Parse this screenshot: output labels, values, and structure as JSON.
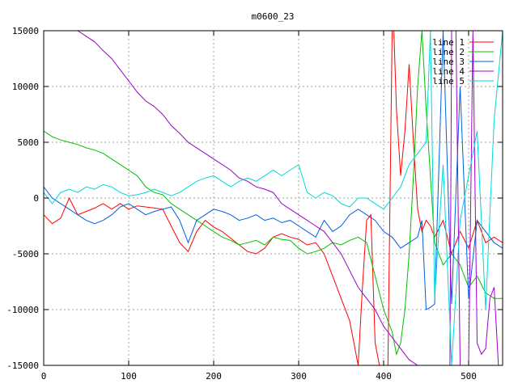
{
  "chart_data": {
    "type": "line",
    "title": "m0600_23",
    "xlabel": "",
    "ylabel": "",
    "xlim": [
      0,
      540
    ],
    "ylim": [
      -15000,
      15000
    ],
    "x_ticks": [
      0,
      100,
      200,
      300,
      400,
      500
    ],
    "y_ticks": [
      -15000,
      -10000,
      -5000,
      0,
      5000,
      10000,
      15000
    ],
    "grid": true,
    "legend_position": "top-right",
    "series": [
      {
        "name": "line 1",
        "color": "#ff0000",
        "x": [
          0,
          10,
          20,
          30,
          40,
          50,
          60,
          70,
          80,
          90,
          100,
          110,
          120,
          130,
          140,
          150,
          160,
          170,
          180,
          190,
          200,
          210,
          220,
          230,
          240,
          250,
          260,
          270,
          280,
          290,
          300,
          310,
          320,
          330,
          340,
          350,
          360,
          365,
          370,
          375,
          380,
          385,
          390,
          395,
          400,
          405,
          410,
          412,
          415,
          420,
          425,
          430,
          435,
          440,
          445,
          450,
          455,
          460,
          470,
          480,
          490,
          500,
          510,
          520,
          530,
          540
        ],
        "values": [
          -1500,
          -2300,
          -1800,
          0,
          -1500,
          -1200,
          -900,
          -500,
          -1000,
          -500,
          -1000,
          -700,
          -800,
          -900,
          -1000,
          -2500,
          -4000,
          -4800,
          -3000,
          -2000,
          -2600,
          -3000,
          -3600,
          -4200,
          -4800,
          -5000,
          -4500,
          -3500,
          -3200,
          -3500,
          -3700,
          -4200,
          -4000,
          -5000,
          -7000,
          -9000,
          -11000,
          -13000,
          -15000,
          -8000,
          -2000,
          -1500,
          -13000,
          -15000,
          -15000,
          -15000,
          15000,
          15000,
          8000,
          2000,
          6000,
          12000,
          5000,
          -1000,
          -3000,
          -2000,
          -2500,
          -3500,
          -2000,
          -5000,
          -3000,
          -4500,
          -2000,
          -4000,
          -3500,
          -4000
        ]
      },
      {
        "name": "line 2",
        "color": "#00c000",
        "x": [
          0,
          10,
          20,
          30,
          40,
          50,
          60,
          70,
          80,
          90,
          100,
          110,
          120,
          130,
          140,
          150,
          160,
          170,
          180,
          190,
          200,
          210,
          220,
          230,
          240,
          250,
          260,
          270,
          280,
          290,
          300,
          310,
          320,
          330,
          340,
          350,
          360,
          370,
          380,
          390,
          400,
          410,
          415,
          420,
          425,
          430,
          435,
          440,
          445,
          450,
          460,
          470,
          480,
          490,
          500,
          510,
          520,
          530,
          540
        ],
        "values": [
          6000,
          5500,
          5200,
          5000,
          4800,
          4500,
          4300,
          4000,
          3500,
          3000,
          2500,
          2000,
          1000,
          500,
          300,
          -500,
          -1000,
          -1500,
          -2000,
          -2500,
          -3000,
          -3500,
          -3800,
          -4200,
          -4000,
          -3800,
          -4200,
          -3500,
          -3700,
          -3800,
          -4500,
          -5000,
          -4800,
          -4500,
          -4000,
          -4200,
          -3800,
          -3500,
          -4000,
          -7000,
          -10000,
          -12000,
          -14000,
          -13000,
          -10000,
          -5000,
          2000,
          10000,
          15000,
          8000,
          -4000,
          -6000,
          -5000,
          -6000,
          -8000,
          -7000,
          -8500,
          -9000,
          -9000
        ]
      },
      {
        "name": "line 3",
        "color": "#0060e0",
        "x": [
          0,
          10,
          20,
          30,
          40,
          50,
          60,
          70,
          80,
          90,
          100,
          110,
          120,
          130,
          140,
          150,
          160,
          170,
          180,
          190,
          200,
          210,
          220,
          230,
          240,
          250,
          260,
          270,
          280,
          290,
          300,
          310,
          320,
          330,
          340,
          350,
          360,
          370,
          380,
          390,
          400,
          410,
          420,
          430,
          440,
          445,
          450,
          455,
          460,
          470,
          480,
          490,
          500,
          510,
          520,
          530,
          540
        ],
        "values": [
          1000,
          0,
          -500,
          -1000,
          -1500,
          -2000,
          -2300,
          -2000,
          -1500,
          -800,
          -500,
          -1000,
          -1500,
          -1200,
          -1000,
          -800,
          -2000,
          -4000,
          -2000,
          -1500,
          -1000,
          -1200,
          -1500,
          -2000,
          -1800,
          -1500,
          -2000,
          -1800,
          -2200,
          -2000,
          -2500,
          -3000,
          -3500,
          -2000,
          -3000,
          -2500,
          -1500,
          -1000,
          -1500,
          -2000,
          -3000,
          -3500,
          -4500,
          -4000,
          -3500,
          -2000,
          -10000,
          -9800,
          -9500,
          15000,
          -9500,
          10000,
          -9000,
          -2000,
          -3000,
          -4000,
          -4500
        ]
      },
      {
        "name": "line 4",
        "color": "#a000c8",
        "x": [
          40,
          50,
          60,
          70,
          80,
          90,
          100,
          110,
          120,
          130,
          140,
          150,
          160,
          170,
          180,
          190,
          200,
          210,
          220,
          230,
          240,
          250,
          260,
          270,
          280,
          290,
          300,
          310,
          320,
          330,
          340,
          350,
          360,
          370,
          380,
          390,
          400,
          410,
          420,
          430,
          440,
          450,
          460,
          470,
          478,
          480,
          485,
          490,
          495,
          500,
          505,
          510,
          515,
          520,
          525,
          530,
          535,
          540
        ],
        "values": [
          15000,
          14500,
          14000,
          13200,
          12500,
          11500,
          10500,
          9500,
          8700,
          8200,
          7500,
          6500,
          5800,
          5000,
          4500,
          4000,
          3500,
          3000,
          2500,
          1800,
          1500,
          1000,
          800,
          500,
          -500,
          -1000,
          -1500,
          -2000,
          -2500,
          -3000,
          -4000,
          -5000,
          -6500,
          -8000,
          -9000,
          -10000,
          -11500,
          -12500,
          -13500,
          -14500,
          -15000,
          -15000,
          -15000,
          -15000,
          -15000,
          15000,
          15000,
          -15000,
          -15000,
          -15000,
          15000,
          -13000,
          -14000,
          -13500,
          -9000,
          -8000,
          -15000,
          -15000
        ]
      },
      {
        "name": "line 5",
        "color": "#00d8d8",
        "x": [
          0,
          10,
          20,
          30,
          40,
          50,
          60,
          70,
          80,
          90,
          100,
          110,
          120,
          130,
          140,
          150,
          160,
          170,
          180,
          190,
          200,
          210,
          220,
          230,
          240,
          250,
          260,
          270,
          280,
          290,
          300,
          310,
          320,
          330,
          340,
          350,
          360,
          370,
          380,
          390,
          400,
          410,
          420,
          430,
          440,
          450,
          455,
          460,
          470,
          480,
          490,
          500,
          510,
          520,
          530,
          540
        ],
        "values": [
          500,
          -500,
          500,
          800,
          500,
          1000,
          800,
          1200,
          1000,
          500,
          200,
          300,
          500,
          800,
          500,
          200,
          500,
          1000,
          1500,
          1800,
          2000,
          1500,
          1000,
          1500,
          1800,
          1500,
          2000,
          2500,
          2000,
          2500,
          3000,
          500,
          0,
          500,
          200,
          -500,
          -800,
          0,
          0,
          -500,
          -1000,
          0,
          1000,
          3000,
          4000,
          5000,
          15000,
          -9000,
          3000,
          -15000,
          -2000,
          2000,
          6000,
          -10000,
          7000,
          15000
        ]
      }
    ]
  }
}
